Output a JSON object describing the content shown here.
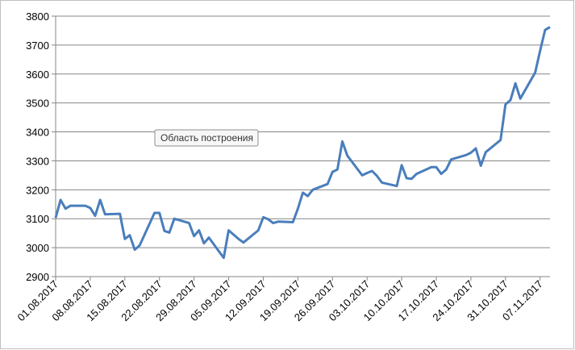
{
  "chart_data": {
    "type": "line",
    "tooltip": "Область построения",
    "x": [
      "01.08.2017",
      "02.08.2017",
      "03.08.2017",
      "04.08.2017",
      "07.08.2017",
      "08.08.2017",
      "09.08.2017",
      "10.08.2017",
      "11.08.2017",
      "14.08.2017",
      "15.08.2017",
      "16.08.2017",
      "17.08.2017",
      "18.08.2017",
      "21.08.2017",
      "22.08.2017",
      "23.08.2017",
      "24.08.2017",
      "25.08.2017",
      "28.08.2017",
      "29.08.2017",
      "30.08.2017",
      "31.08.2017",
      "01.09.2017",
      "04.09.2017",
      "05.09.2017",
      "06.09.2017",
      "07.09.2017",
      "08.09.2017",
      "11.09.2017",
      "12.09.2017",
      "13.09.2017",
      "14.09.2017",
      "15.09.2017",
      "18.09.2017",
      "19.09.2017",
      "20.09.2017",
      "21.09.2017",
      "22.09.2017",
      "25.09.2017",
      "26.09.2017",
      "27.09.2017",
      "28.09.2017",
      "29.09.2017",
      "02.10.2017",
      "03.10.2017",
      "04.10.2017",
      "05.10.2017",
      "06.10.2017",
      "09.10.2017",
      "10.10.2017",
      "11.10.2017",
      "12.10.2017",
      "13.10.2017",
      "16.10.2017",
      "17.10.2017",
      "18.10.2017",
      "19.10.2017",
      "20.10.2017",
      "23.10.2017",
      "24.10.2017",
      "25.10.2017",
      "26.10.2017",
      "27.10.2017",
      "30.10.2017",
      "31.10.2017",
      "01.11.2017",
      "02.11.2017",
      "03.11.2017",
      "06.11.2017",
      "07.11.2017",
      "08.11.2017",
      "09.11.2017"
    ],
    "series": [
      {
        "color": "#4a7ebb",
        "values": [
          3103,
          3165,
          3135,
          3145,
          3145,
          3137,
          3110,
          3165,
          3115,
          3117,
          3030,
          3043,
          2993,
          3008,
          3120,
          3120,
          3058,
          3052,
          3100,
          3085,
          3040,
          3060,
          3015,
          3035,
          2965,
          3060,
          3045,
          3030,
          3018,
          3060,
          3105,
          3098,
          3085,
          3090,
          3088,
          3135,
          3190,
          3178,
          3200,
          3220,
          3262,
          3270,
          3367,
          3318,
          3250,
          3258,
          3265,
          3248,
          3225,
          3213,
          3285,
          3240,
          3238,
          3255,
          3278,
          3278,
          3255,
          3270,
          3305,
          3320,
          3328,
          3343,
          3283,
          3330,
          3372,
          3495,
          3510,
          3568,
          3515,
          3605,
          3680,
          3752,
          3762
        ]
      }
    ],
    "xlim": [
      "01.08.2017",
      "09.11.2017"
    ],
    "xticks": [
      "01.08.2017",
      "08.08.2017",
      "15.08.2017",
      "22.08.2017",
      "29.08.2017",
      "05.09.2017",
      "12.09.2017",
      "19.09.2017",
      "26.09.2017",
      "03.10.2017",
      "10.10.2017",
      "17.10.2017",
      "24.10.2017",
      "31.10.2017",
      "07.11.2017"
    ],
    "ylim": [
      2900,
      3800
    ],
    "yticks": [
      2900,
      3000,
      3100,
      3200,
      3300,
      3400,
      3500,
      3600,
      3700,
      3800
    ],
    "grid": true
  }
}
